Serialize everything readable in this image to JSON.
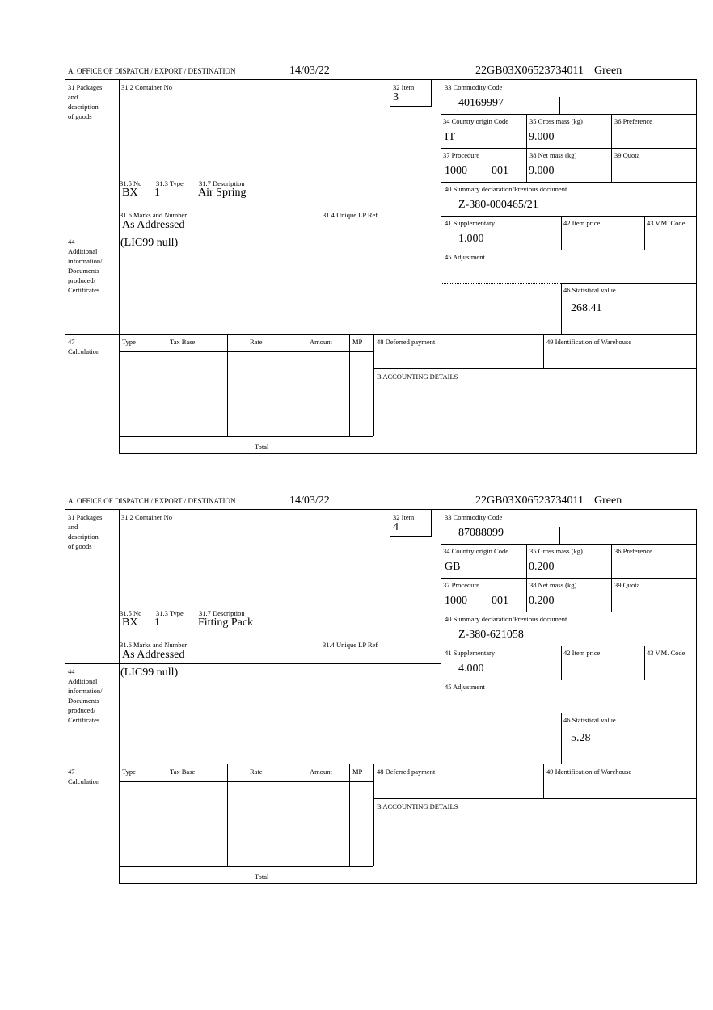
{
  "labels": {
    "office": "A.  OFFICE OF DISPATCH / EXPORT / DESTINATION",
    "packages": [
      "31 Packages",
      "and",
      "description",
      "of goods"
    ],
    "container": "31.2 Container No",
    "item": "32 Item",
    "no": "31.5 No",
    "type": "31.3 Type",
    "description": "31.7 Description",
    "marks": "31.6 Marks and Number",
    "unique_lp": "31.4 Unique LP Ref",
    "commodity": "33 Commodity Code",
    "country": "34 Country origin Code",
    "gross": "35 Gross mass (kg)",
    "preference": "36 Preference",
    "procedure": "37 Procedure",
    "net": "38 Net mass (kg)",
    "quota": "39 Quota",
    "summary": "40 Summary declaration/Previous document",
    "supplementary": "41 Supplementary",
    "item_price": "42 Item price",
    "vm_code": "43 V.M. Code",
    "additional": [
      "44",
      "Additional",
      "information/",
      "Documents",
      "produced/",
      "Certificates"
    ],
    "adjustment": "45 Adjustment",
    "statistical": "46 Statistical value",
    "calculation": [
      "47",
      "Calculation"
    ],
    "calc_cols": [
      "Type",
      "Tax Base",
      "Rate",
      "Amount",
      "MP"
    ],
    "total": "Total",
    "deferred": "48 Deferred payment",
    "warehouse": "49 Identification of Warehouse",
    "accounting": "B ACCOUNTING DETAILS"
  },
  "items": [
    {
      "date": "14/03/22",
      "reference": "22GB03X06523734011",
      "route": "Green",
      "item_no": "3",
      "pkg_kind": "BX",
      "pkg_count": "1",
      "description": "Air Spring",
      "marks": "As Addressed",
      "commodity_code": "40169997",
      "country": "IT",
      "gross_mass": "9.000",
      "procedure": "1000",
      "procedure_add": "001",
      "net_mass": "9.000",
      "previous_doc": "Z-380-000465/21",
      "supplementary": "1.000",
      "additional_info": "(LIC99 null)",
      "statistical_value": "268.41"
    },
    {
      "date": "14/03/22",
      "reference": "22GB03X06523734011",
      "route": "Green",
      "item_no": "4",
      "pkg_kind": "BX",
      "pkg_count": "1",
      "description": "Fitting Pack",
      "marks": "As Addressed",
      "commodity_code": "87088099",
      "country": "GB",
      "gross_mass": "0.200",
      "procedure": "1000",
      "procedure_add": "001",
      "net_mass": "0.200",
      "previous_doc": "Z-380-621058",
      "supplementary": "4.000",
      "additional_info": "(LIC99 null)",
      "statistical_value": "5.28"
    }
  ]
}
